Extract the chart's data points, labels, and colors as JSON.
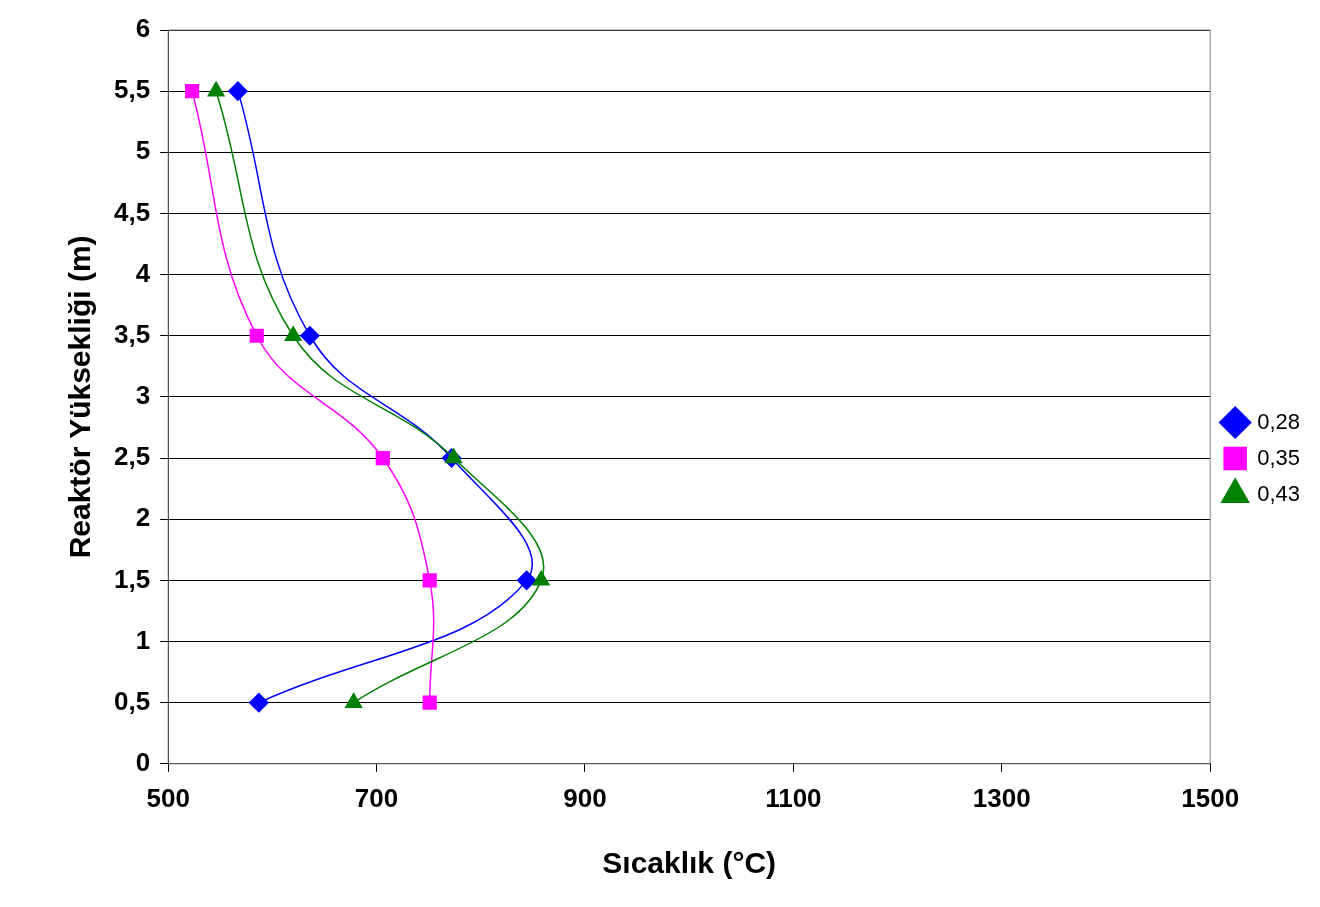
{
  "chart_data": {
    "type": "line",
    "xlabel": "Sıcaklık (°C)",
    "ylabel": "Reaktör Yüksekliği (m)",
    "xlim": [
      500,
      1500
    ],
    "xticks": [
      500,
      700,
      900,
      1100,
      1300,
      1500
    ],
    "ylim": [
      0,
      6
    ],
    "yticks": [
      0,
      {
        "value": 0.5,
        "label": "0,5"
      },
      1,
      {
        "value": 1.5,
        "label": "1,5"
      },
      2,
      {
        "value": 2.5,
        "label": "2,5"
      },
      3,
      {
        "value": 3.5,
        "label": "3,5"
      },
      4,
      {
        "value": 4.5,
        "label": "4,5"
      },
      5,
      {
        "value": 5.5,
        "label": "5,5"
      },
      6
    ],
    "grid": "y",
    "legend": "right",
    "series": [
      {
        "name": "0,28",
        "color": "#0000ff",
        "marker": "diamond",
        "x": [
          567,
          636,
          772,
          844,
          587
        ],
        "values": [
          5.5,
          3.5,
          2.5,
          1.5,
          0.5
        ]
      },
      {
        "name": "0,35",
        "color": "#ff00ff",
        "marker": "square",
        "x": [
          523,
          585,
          706,
          751,
          751
        ],
        "values": [
          5.5,
          3.5,
          2.5,
          1.5,
          0.5
        ]
      },
      {
        "name": "0,43",
        "color": "#008000",
        "marker": "triangle",
        "x": [
          546,
          620,
          774,
          858,
          678
        ],
        "values": [
          5.5,
          3.5,
          2.5,
          1.5,
          0.5
        ]
      }
    ]
  }
}
